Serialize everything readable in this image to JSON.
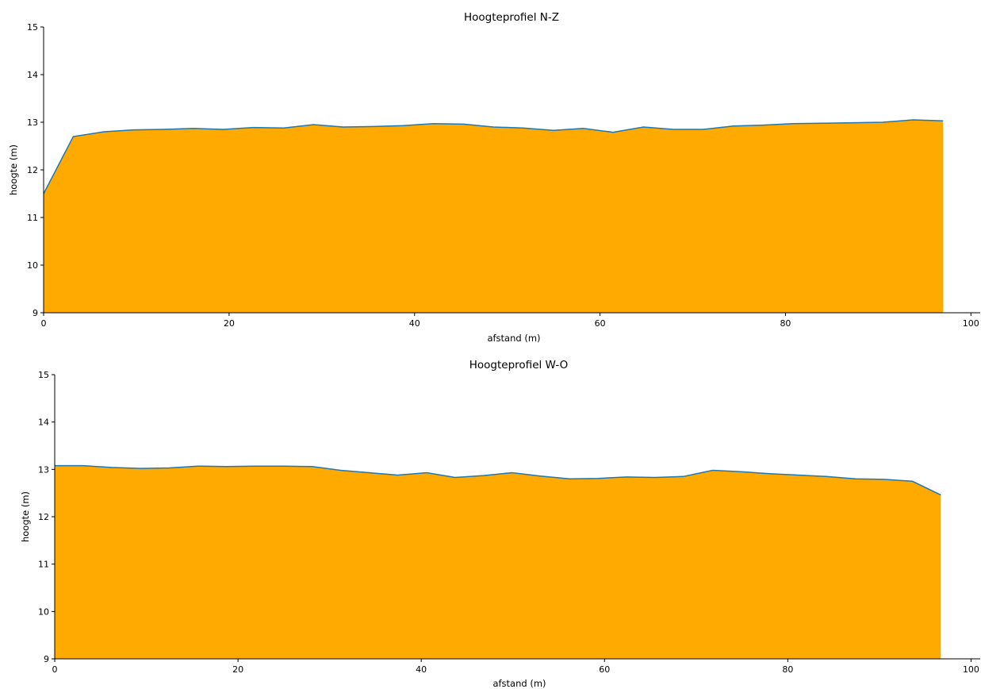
{
  "chart_data": [
    {
      "type": "area",
      "title": "Hoogteprofiel N-Z",
      "xlabel": "afstand (m)",
      "ylabel": "hoogte (m)",
      "xlim": [
        0,
        101
      ],
      "ylim": [
        9,
        15
      ],
      "xticks": [
        0,
        20,
        40,
        60,
        80,
        100
      ],
      "yticks": [
        9,
        10,
        11,
        12,
        13,
        14,
        15
      ],
      "grid": false,
      "fill_color": "#ffaa00",
      "line_color": "#1f77b4",
      "series": [
        {
          "x": [
            0,
            3.2,
            6.5,
            9.7,
            12.9,
            16.2,
            19.4,
            22.6,
            25.9,
            29.1,
            32.3,
            35.6,
            38.8,
            42.0,
            45.3,
            48.5,
            51.7,
            55.0,
            58.2,
            61.4,
            64.7,
            67.9,
            71.1,
            74.4,
            77.6,
            80.8,
            84.1,
            87.3,
            90.5,
            93.8,
            97.0
          ],
          "values": [
            11.5,
            12.7,
            12.8,
            12.84,
            12.85,
            12.87,
            12.85,
            12.89,
            12.88,
            12.95,
            12.9,
            12.91,
            12.93,
            12.97,
            12.96,
            12.9,
            12.88,
            12.83,
            12.87,
            12.79,
            12.9,
            12.85,
            12.85,
            12.92,
            12.94,
            12.97,
            12.98,
            12.99,
            13.0,
            13.05,
            13.03
          ]
        }
      ]
    },
    {
      "type": "area",
      "title": "Hoogteprofiel W-O",
      "xlabel": "afstand (m)",
      "ylabel": "hoogte (m)",
      "xlim": [
        0,
        101
      ],
      "ylim": [
        9,
        15
      ],
      "xticks": [
        0,
        20,
        40,
        60,
        80,
        100
      ],
      "yticks": [
        9,
        10,
        11,
        12,
        13,
        14,
        15
      ],
      "grid": false,
      "fill_color": "#ffaa00",
      "line_color": "#1f77b4",
      "series": [
        {
          "x": [
            0,
            3.1,
            6.2,
            9.4,
            12.5,
            15.6,
            18.7,
            21.8,
            25.0,
            28.1,
            31.2,
            34.3,
            37.4,
            40.6,
            43.7,
            46.8,
            49.9,
            53.0,
            56.2,
            59.3,
            62.4,
            65.5,
            68.6,
            71.8,
            74.9,
            78.0,
            81.1,
            84.2,
            87.4,
            90.5,
            93.6,
            96.7
          ],
          "values": [
            13.08,
            13.08,
            13.04,
            13.02,
            13.03,
            13.07,
            13.06,
            13.07,
            13.07,
            13.06,
            12.98,
            12.93,
            12.88,
            12.93,
            12.83,
            12.87,
            12.93,
            12.86,
            12.8,
            12.81,
            12.84,
            12.83,
            12.85,
            12.98,
            12.95,
            12.91,
            12.88,
            12.85,
            12.8,
            12.79,
            12.75,
            12.46
          ]
        }
      ]
    }
  ]
}
